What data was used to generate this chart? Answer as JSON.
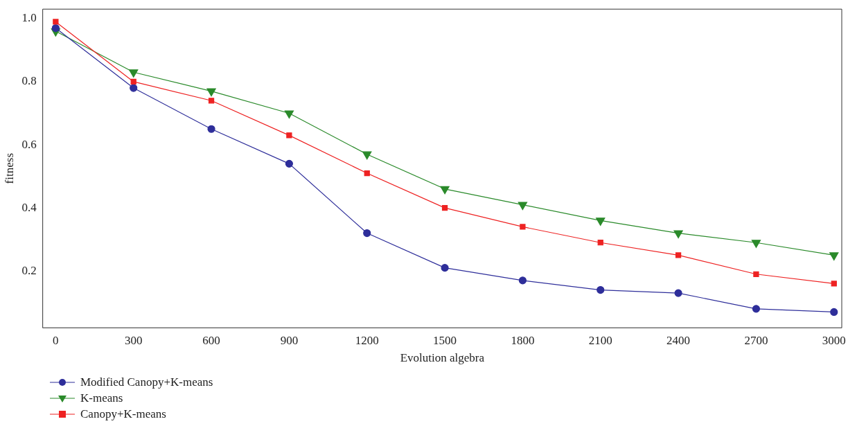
{
  "chart_data": {
    "type": "line",
    "xlabel": "Evolution algebra",
    "ylabel": "fitness",
    "x": [
      0,
      300,
      600,
      900,
      1200,
      1500,
      1800,
      2100,
      2400,
      2700,
      3000
    ],
    "series": [
      {
        "name": "Modified Canopy+K-means",
        "color": "#2e2e9a",
        "marker": "circle",
        "values": [
          0.97,
          0.78,
          0.65,
          0.54,
          0.32,
          0.21,
          0.17,
          0.14,
          0.13,
          0.08,
          0.07
        ]
      },
      {
        "name": "K-means",
        "color": "#2a8a2a",
        "marker": "triangle",
        "values": [
          0.96,
          0.83,
          0.77,
          0.7,
          0.57,
          0.46,
          0.41,
          0.36,
          0.32,
          0.29,
          0.25
        ]
      },
      {
        "name": "Canopy+K-means",
        "color": "#ee2222",
        "marker": "square",
        "values": [
          0.99,
          0.8,
          0.74,
          0.63,
          0.51,
          0.4,
          0.34,
          0.29,
          0.25,
          0.19,
          0.16
        ]
      }
    ],
    "xlim": [
      -50,
      3030
    ],
    "xticks": [
      0,
      300,
      600,
      900,
      1200,
      1500,
      1800,
      2100,
      2400,
      2700,
      3000
    ],
    "ylim": [
      0.02,
      1.03
    ],
    "yticks": [
      {
        "value": 0.2,
        "label": "0.2"
      },
      {
        "value": 0.4,
        "label": "0.4"
      },
      {
        "value": 0.6,
        "label": "0.6"
      },
      {
        "value": 0.8,
        "label": "0.8"
      },
      {
        "value": 1.0,
        "label": "1.0"
      }
    ],
    "grid": false,
    "legend": "bottom left",
    "line_style": "solid"
  }
}
